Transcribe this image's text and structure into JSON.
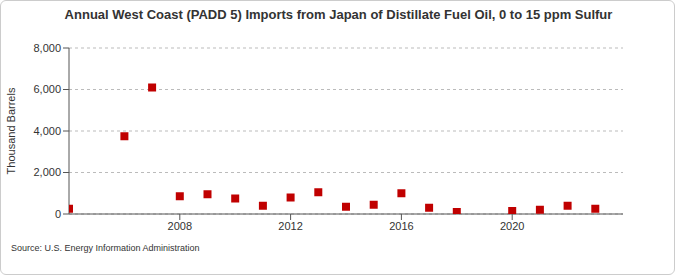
{
  "chart_data": {
    "type": "scatter",
    "title": "Annual West Coast (PADD 5) Imports from Japan of Distillate Fuel Oil, 0 to 15 ppm Sulfur",
    "y_label": "Thousand Barrels",
    "source": "Source: U.S. Energy Information Administration",
    "x": [
      2004,
      2006,
      2007,
      2008,
      2009,
      2010,
      2011,
      2012,
      2013,
      2014,
      2015,
      2016,
      2017,
      2018,
      2020,
      2021,
      2022,
      2023
    ],
    "values": [
      250,
      3750,
      6100,
      850,
      950,
      750,
      400,
      800,
      1050,
      350,
      450,
      1000,
      300,
      100,
      150,
      200,
      400,
      250
    ],
    "color": "#c00000",
    "marker": "square",
    "xlim": [
      2004,
      2024
    ],
    "xticks": [
      2008,
      2012,
      2016,
      2020
    ],
    "ylim": [
      0,
      8000
    ],
    "yticks": [
      0,
      {
        "value": 2000,
        "label": "2,000"
      },
      {
        "value": 4000,
        "label": "4,000"
      },
      {
        "value": 6000,
        "label": "6,000"
      },
      {
        "value": 8000,
        "label": "8,000"
      }
    ],
    "grid": true
  }
}
